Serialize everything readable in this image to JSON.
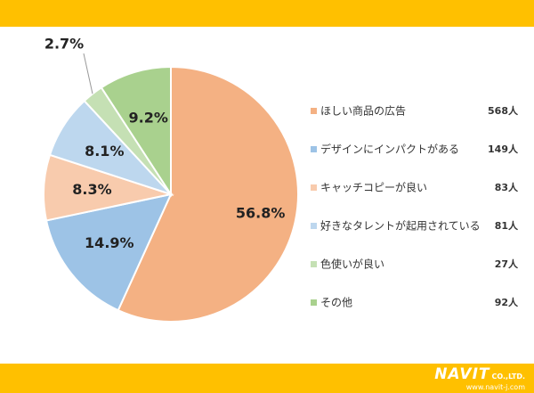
{
  "colors": {
    "band": "#FFC000",
    "slices": [
      "#F4B183",
      "#9DC3E6",
      "#F8CBAD",
      "#BDD7EE",
      "#C5E0B4",
      "#A9D18E"
    ]
  },
  "brand": {
    "logo": "NAVIT",
    "company": "CO.,LTD.",
    "url": "www.navit-j.com"
  },
  "chart_data": {
    "type": "pie",
    "categories": [
      "ほしい商品の広告",
      "デザインにインパクトがある",
      "キャッチコピーが良い",
      "好きなタレントが起用されている",
      "色使いが良い",
      "その他"
    ],
    "values": [
      56.8,
      14.9,
      8.3,
      8.1,
      2.7,
      9.2
    ],
    "value_labels": [
      "56.8%",
      "14.9%",
      "8.3%",
      "8.1%",
      "2.7%",
      "9.2%"
    ],
    "counts": [
      "568人",
      "149人",
      "83人",
      "81人",
      "27人",
      "92人"
    ],
    "legend_placement": "right",
    "start": "12 o'clock, clockwise"
  }
}
